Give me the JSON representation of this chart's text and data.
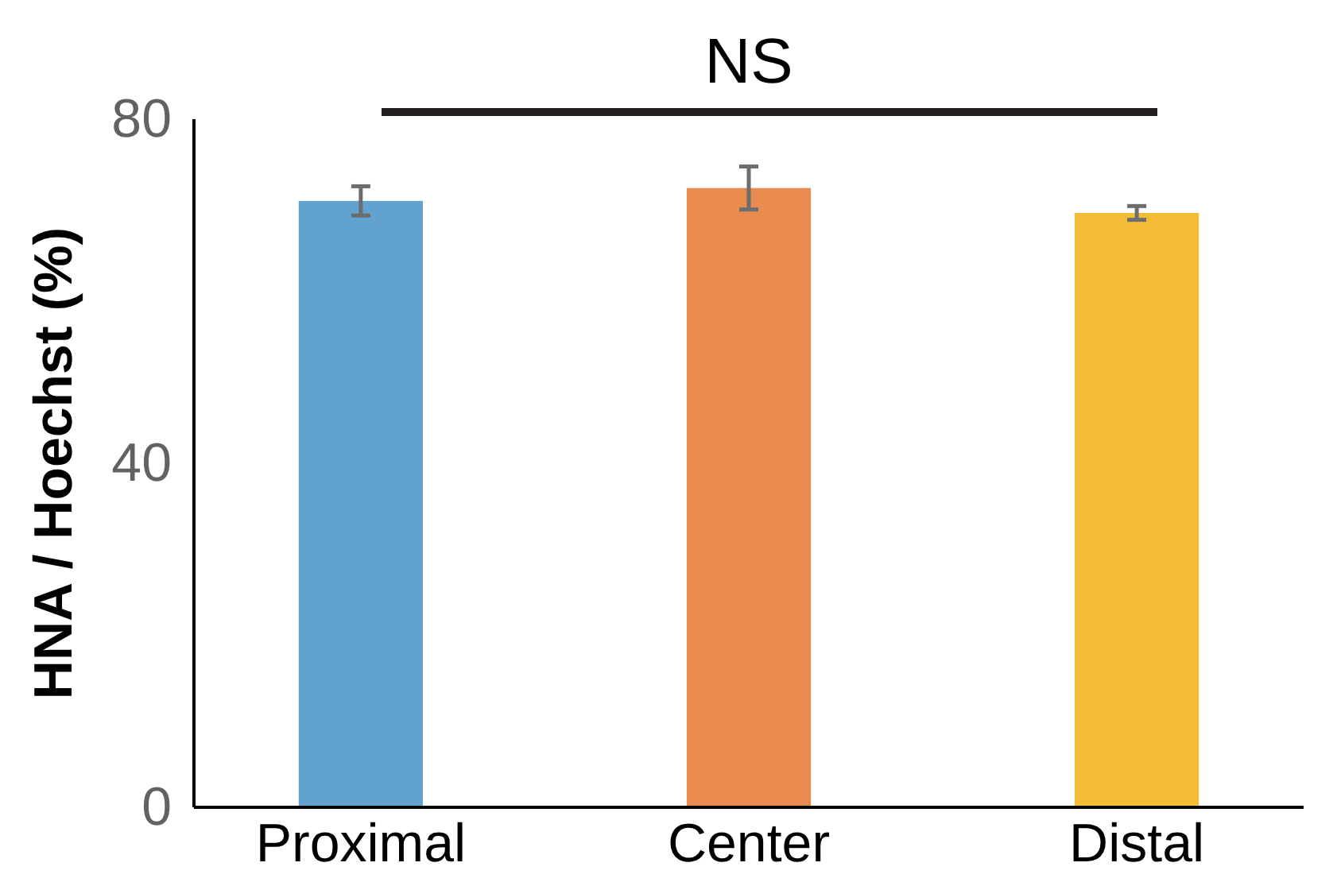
{
  "chart_data": {
    "type": "bar",
    "ylabel": "HNA / Hoechst (%)",
    "categories": [
      "Proximal",
      "Center",
      "Distal"
    ],
    "values": [
      70.5,
      72.0,
      69.1
    ],
    "colors": [
      "#62a2cf",
      "#e98b4f",
      "#f4bb37"
    ],
    "errors": [
      1.7,
      2.5,
      0.8
    ],
    "ylim": [
      0,
      80
    ],
    "yticks": [
      0,
      40,
      80
    ],
    "grid": false,
    "annotations": [
      "NS"
    ]
  }
}
